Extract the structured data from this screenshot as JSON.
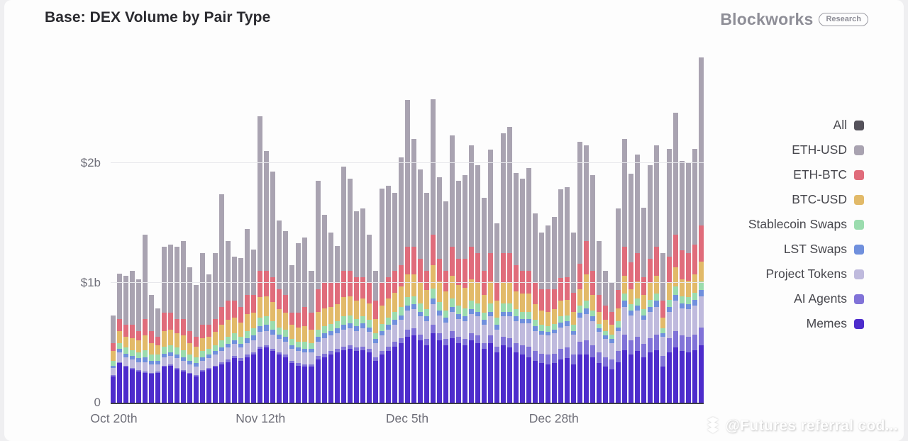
{
  "header": {
    "title": "Base: DEX Volume by Pair Type",
    "brand": "Blockworks",
    "brand_badge": "Research"
  },
  "watermark": {
    "text": "@Futures referral cod...",
    "icon": "diamond-chevrons-icon"
  },
  "legend": {
    "items": [
      {
        "label": "All",
        "color": "#54515a"
      },
      {
        "label": "ETH-USD",
        "color": "#a9a3b1"
      },
      {
        "label": "ETH-BTC",
        "color": "#e06c7b"
      },
      {
        "label": "BTC-USD",
        "color": "#e2ba69"
      },
      {
        "label": "Stablecoin Swaps",
        "color": "#9bdcae"
      },
      {
        "label": "LST Swaps",
        "color": "#7090dd"
      },
      {
        "label": "Project Tokens",
        "color": "#bfbadd"
      },
      {
        "label": "AI Agents",
        "color": "#8173d8"
      },
      {
        "label": "Memes",
        "color": "#4d2ccc"
      }
    ]
  },
  "chart_data": {
    "type": "bar",
    "stacked": true,
    "unit": "billions USD",
    "title": "Base: DEX Volume by Pair Type",
    "xlabel": "",
    "ylabel": "",
    "ylim": [
      0,
      2.95
    ],
    "grid": "horizontal",
    "legend_position": "right",
    "y_ticks": [
      {
        "value": 0,
        "label": "0"
      },
      {
        "value": 1,
        "label": "$1b"
      },
      {
        "value": 2,
        "label": "$2b"
      }
    ],
    "x_ticks": [
      {
        "index": 0,
        "label": "Oct 20th"
      },
      {
        "index": 23,
        "label": "Nov 12th"
      },
      {
        "index": 46,
        "label": "Dec 5th"
      },
      {
        "index": 69,
        "label": "Dec 28th"
      }
    ],
    "series": [
      {
        "name": "Memes",
        "color": "#4d2ccc",
        "values": [
          0.22,
          0.33,
          0.3,
          0.28,
          0.26,
          0.25,
          0.24,
          0.25,
          0.3,
          0.31,
          0.28,
          0.26,
          0.24,
          0.22,
          0.26,
          0.28,
          0.3,
          0.32,
          0.34,
          0.37,
          0.35,
          0.38,
          0.4,
          0.45,
          0.46,
          0.43,
          0.4,
          0.38,
          0.33,
          0.31,
          0.3,
          0.3,
          0.36,
          0.38,
          0.4,
          0.42,
          0.44,
          0.45,
          0.43,
          0.44,
          0.42,
          0.35,
          0.4,
          0.43,
          0.47,
          0.5,
          0.55,
          0.56,
          0.52,
          0.48,
          0.58,
          0.52,
          0.48,
          0.54,
          0.5,
          0.48,
          0.52,
          0.5,
          0.45,
          0.5,
          0.42,
          0.48,
          0.46,
          0.42,
          0.4,
          0.38,
          0.35,
          0.33,
          0.32,
          0.33,
          0.36,
          0.37,
          0.32,
          0.4,
          0.4,
          0.38,
          0.33,
          0.3,
          0.28,
          0.34,
          0.44,
          0.4,
          0.43,
          0.38,
          0.42,
          0.44,
          0.3,
          0.42,
          0.46,
          0.43,
          0.42,
          0.44,
          0.48
        ]
      },
      {
        "name": "AI Agents",
        "color": "#8173d8",
        "values": [
          0.01,
          0.01,
          0.01,
          0.01,
          0.01,
          0.01,
          0.01,
          0.01,
          0.01,
          0.01,
          0.01,
          0.01,
          0.01,
          0.01,
          0.01,
          0.01,
          0.01,
          0.02,
          0.02,
          0.02,
          0.02,
          0.02,
          0.02,
          0.02,
          0.02,
          0.02,
          0.02,
          0.02,
          0.02,
          0.02,
          0.02,
          0.02,
          0.03,
          0.03,
          0.03,
          0.03,
          0.03,
          0.03,
          0.03,
          0.03,
          0.03,
          0.03,
          0.03,
          0.04,
          0.04,
          0.04,
          0.06,
          0.06,
          0.05,
          0.05,
          0.07,
          0.06,
          0.05,
          0.06,
          0.05,
          0.05,
          0.06,
          0.06,
          0.05,
          0.06,
          0.05,
          0.07,
          0.08,
          0.08,
          0.08,
          0.09,
          0.08,
          0.08,
          0.08,
          0.08,
          0.09,
          0.09,
          0.08,
          0.11,
          0.12,
          0.1,
          0.09,
          0.08,
          0.08,
          0.09,
          0.13,
          0.12,
          0.12,
          0.11,
          0.12,
          0.13,
          0.09,
          0.12,
          0.14,
          0.13,
          0.13,
          0.13,
          0.15
        ]
      },
      {
        "name": "Project Tokens",
        "color": "#bfbadd",
        "values": [
          0.06,
          0.08,
          0.07,
          0.07,
          0.07,
          0.08,
          0.07,
          0.06,
          0.07,
          0.07,
          0.08,
          0.08,
          0.07,
          0.07,
          0.08,
          0.08,
          0.09,
          0.09,
          0.1,
          0.1,
          0.09,
          0.1,
          0.1,
          0.12,
          0.12,
          0.12,
          0.11,
          0.11,
          0.1,
          0.1,
          0.1,
          0.1,
          0.12,
          0.13,
          0.13,
          0.13,
          0.14,
          0.14,
          0.14,
          0.15,
          0.14,
          0.12,
          0.13,
          0.14,
          0.14,
          0.15,
          0.16,
          0.16,
          0.15,
          0.15,
          0.17,
          0.15,
          0.14,
          0.16,
          0.15,
          0.15,
          0.16,
          0.16,
          0.15,
          0.16,
          0.14,
          0.17,
          0.18,
          0.18,
          0.18,
          0.19,
          0.17,
          0.16,
          0.16,
          0.17,
          0.18,
          0.18,
          0.17,
          0.2,
          0.22,
          0.2,
          0.17,
          0.15,
          0.14,
          0.17,
          0.23,
          0.21,
          0.22,
          0.2,
          0.22,
          0.23,
          0.16,
          0.22,
          0.25,
          0.23,
          0.23,
          0.24,
          0.26
        ]
      },
      {
        "name": "LST Swaps",
        "color": "#7090dd",
        "values": [
          0.02,
          0.03,
          0.03,
          0.03,
          0.03,
          0.04,
          0.03,
          0.03,
          0.03,
          0.03,
          0.03,
          0.03,
          0.03,
          0.03,
          0.03,
          0.03,
          0.03,
          0.03,
          0.03,
          0.03,
          0.03,
          0.04,
          0.04,
          0.05,
          0.05,
          0.04,
          0.04,
          0.04,
          0.03,
          0.03,
          0.03,
          0.03,
          0.04,
          0.04,
          0.04,
          0.04,
          0.04,
          0.04,
          0.04,
          0.04,
          0.04,
          0.03,
          0.04,
          0.04,
          0.04,
          0.04,
          0.04,
          0.04,
          0.04,
          0.04,
          0.05,
          0.04,
          0.04,
          0.04,
          0.04,
          0.04,
          0.04,
          0.04,
          0.04,
          0.04,
          0.04,
          0.04,
          0.04,
          0.04,
          0.04,
          0.04,
          0.04,
          0.03,
          0.03,
          0.03,
          0.04,
          0.04,
          0.03,
          0.04,
          0.05,
          0.04,
          0.03,
          0.03,
          0.03,
          0.03,
          0.05,
          0.04,
          0.04,
          0.04,
          0.04,
          0.05,
          0.03,
          0.04,
          0.05,
          0.04,
          0.04,
          0.05,
          0.05
        ]
      },
      {
        "name": "Stablecoin Swaps",
        "color": "#9bdcae",
        "values": [
          0.04,
          0.05,
          0.05,
          0.05,
          0.05,
          0.06,
          0.05,
          0.05,
          0.06,
          0.06,
          0.06,
          0.06,
          0.05,
          0.05,
          0.05,
          0.05,
          0.05,
          0.06,
          0.06,
          0.06,
          0.06,
          0.06,
          0.06,
          0.07,
          0.07,
          0.07,
          0.06,
          0.06,
          0.05,
          0.05,
          0.06,
          0.05,
          0.06,
          0.06,
          0.06,
          0.06,
          0.07,
          0.07,
          0.06,
          0.06,
          0.06,
          0.05,
          0.06,
          0.06,
          0.07,
          0.07,
          0.07,
          0.07,
          0.07,
          0.06,
          0.08,
          0.07,
          0.06,
          0.07,
          0.07,
          0.07,
          0.07,
          0.07,
          0.06,
          0.07,
          0.06,
          0.07,
          0.07,
          0.06,
          0.06,
          0.06,
          0.05,
          0.05,
          0.05,
          0.05,
          0.05,
          0.05,
          0.05,
          0.06,
          0.06,
          0.05,
          0.04,
          0.04,
          0.04,
          0.05,
          0.06,
          0.05,
          0.06,
          0.05,
          0.06,
          0.06,
          0.04,
          0.06,
          0.07,
          0.06,
          0.06,
          0.06,
          0.07
        ]
      },
      {
        "name": "BTC-USD",
        "color": "#e2ba69",
        "values": [
          0.08,
          0.1,
          0.09,
          0.1,
          0.1,
          0.12,
          0.1,
          0.08,
          0.13,
          0.13,
          0.12,
          0.12,
          0.1,
          0.09,
          0.11,
          0.1,
          0.11,
          0.13,
          0.14,
          0.13,
          0.12,
          0.14,
          0.13,
          0.17,
          0.17,
          0.16,
          0.15,
          0.14,
          0.12,
          0.12,
          0.13,
          0.11,
          0.15,
          0.15,
          0.14,
          0.14,
          0.16,
          0.16,
          0.15,
          0.15,
          0.14,
          0.12,
          0.15,
          0.16,
          0.16,
          0.17,
          0.19,
          0.18,
          0.17,
          0.16,
          0.2,
          0.17,
          0.16,
          0.19,
          0.17,
          0.17,
          0.18,
          0.17,
          0.15,
          0.18,
          0.14,
          0.17,
          0.17,
          0.15,
          0.15,
          0.15,
          0.13,
          0.12,
          0.12,
          0.12,
          0.13,
          0.13,
          0.11,
          0.14,
          0.22,
          0.13,
          0.1,
          0.09,
          0.08,
          0.11,
          0.15,
          0.13,
          0.14,
          0.12,
          0.14,
          0.15,
          0.09,
          0.14,
          0.16,
          0.14,
          0.14,
          0.15,
          0.17
        ]
      },
      {
        "name": "ETH-BTC",
        "color": "#e06c7b",
        "values": [
          0.07,
          0.1,
          0.1,
          0.11,
          0.08,
          0.14,
          0.1,
          0.07,
          0.15,
          0.14,
          0.12,
          0.14,
          0.1,
          0.08,
          0.11,
          0.1,
          0.11,
          0.15,
          0.16,
          0.14,
          0.13,
          0.16,
          0.15,
          0.22,
          0.21,
          0.21,
          0.17,
          0.15,
          0.1,
          0.12,
          0.16,
          0.14,
          0.19,
          0.21,
          0.2,
          0.18,
          0.22,
          0.21,
          0.2,
          0.18,
          0.17,
          0.15,
          0.19,
          0.18,
          0.18,
          0.18,
          0.23,
          0.23,
          0.2,
          0.16,
          0.25,
          0.19,
          0.17,
          0.24,
          0.22,
          0.24,
          0.27,
          0.25,
          0.2,
          0.24,
          0.15,
          0.25,
          0.25,
          0.22,
          0.19,
          0.19,
          0.18,
          0.18,
          0.19,
          0.17,
          0.19,
          0.19,
          0.16,
          0.21,
          0.28,
          0.2,
          0.14,
          0.12,
          0.11,
          0.15,
          0.24,
          0.22,
          0.24,
          0.15,
          0.2,
          0.24,
          0.14,
          0.22,
          0.27,
          0.24,
          0.23,
          0.25,
          0.3
        ]
      },
      {
        "name": "ETH-USD",
        "color": "#a9a3b1",
        "values": [
          0.23,
          0.38,
          0.41,
          0.45,
          0.43,
          0.7,
          0.3,
          0.24,
          0.55,
          0.57,
          0.6,
          0.65,
          0.53,
          0.43,
          0.6,
          0.42,
          0.55,
          0.94,
          0.5,
          0.37,
          0.41,
          0.55,
          0.38,
          1.29,
          1.0,
          0.88,
          0.57,
          0.53,
          0.4,
          0.58,
          0.58,
          0.35,
          0.9,
          0.57,
          0.42,
          0.31,
          0.87,
          0.77,
          0.55,
          0.57,
          0.4,
          0.25,
          0.79,
          0.76,
          0.65,
          0.9,
          1.23,
          0.9,
          0.75,
          0.65,
          1.13,
          0.68,
          0.58,
          0.93,
          0.65,
          0.7,
          0.85,
          0.73,
          0.61,
          0.86,
          0.5,
          1.0,
          1.05,
          0.77,
          0.77,
          0.86,
          0.58,
          0.47,
          0.53,
          0.6,
          0.74,
          0.75,
          0.5,
          1.02,
          0.8,
          0.8,
          0.45,
          0.29,
          0.24,
          0.68,
          0.9,
          0.74,
          0.82,
          0.58,
          0.78,
          0.85,
          0.4,
          0.9,
          1.02,
          0.75,
          0.75,
          0.8,
          1.4
        ]
      }
    ]
  }
}
